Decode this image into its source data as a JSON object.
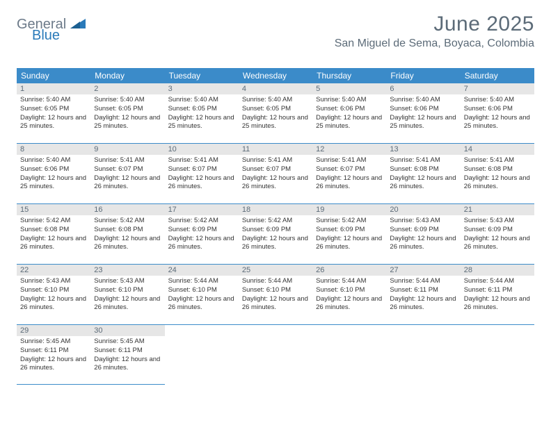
{
  "brand": {
    "part1": "General",
    "part2": "Blue"
  },
  "title": "June 2025",
  "location": "San Miguel de Sema, Boyaca, Colombia",
  "colors": {
    "header_bg": "#3b8bc9",
    "daynum_bg": "#e6e6e6",
    "text_muted": "#5c6b78",
    "brand_blue": "#2a7ab9",
    "brand_gray": "#6c7a89"
  },
  "weekdays": [
    "Sunday",
    "Monday",
    "Tuesday",
    "Wednesday",
    "Thursday",
    "Friday",
    "Saturday"
  ],
  "weeks": [
    [
      {
        "n": "1",
        "sr": "Sunrise: 5:40 AM",
        "ss": "Sunset: 6:05 PM",
        "dl": "Daylight: 12 hours and 25 minutes."
      },
      {
        "n": "2",
        "sr": "Sunrise: 5:40 AM",
        "ss": "Sunset: 6:05 PM",
        "dl": "Daylight: 12 hours and 25 minutes."
      },
      {
        "n": "3",
        "sr": "Sunrise: 5:40 AM",
        "ss": "Sunset: 6:05 PM",
        "dl": "Daylight: 12 hours and 25 minutes."
      },
      {
        "n": "4",
        "sr": "Sunrise: 5:40 AM",
        "ss": "Sunset: 6:05 PM",
        "dl": "Daylight: 12 hours and 25 minutes."
      },
      {
        "n": "5",
        "sr": "Sunrise: 5:40 AM",
        "ss": "Sunset: 6:06 PM",
        "dl": "Daylight: 12 hours and 25 minutes."
      },
      {
        "n": "6",
        "sr": "Sunrise: 5:40 AM",
        "ss": "Sunset: 6:06 PM",
        "dl": "Daylight: 12 hours and 25 minutes."
      },
      {
        "n": "7",
        "sr": "Sunrise: 5:40 AM",
        "ss": "Sunset: 6:06 PM",
        "dl": "Daylight: 12 hours and 25 minutes."
      }
    ],
    [
      {
        "n": "8",
        "sr": "Sunrise: 5:40 AM",
        "ss": "Sunset: 6:06 PM",
        "dl": "Daylight: 12 hours and 25 minutes."
      },
      {
        "n": "9",
        "sr": "Sunrise: 5:41 AM",
        "ss": "Sunset: 6:07 PM",
        "dl": "Daylight: 12 hours and 26 minutes."
      },
      {
        "n": "10",
        "sr": "Sunrise: 5:41 AM",
        "ss": "Sunset: 6:07 PM",
        "dl": "Daylight: 12 hours and 26 minutes."
      },
      {
        "n": "11",
        "sr": "Sunrise: 5:41 AM",
        "ss": "Sunset: 6:07 PM",
        "dl": "Daylight: 12 hours and 26 minutes."
      },
      {
        "n": "12",
        "sr": "Sunrise: 5:41 AM",
        "ss": "Sunset: 6:07 PM",
        "dl": "Daylight: 12 hours and 26 minutes."
      },
      {
        "n": "13",
        "sr": "Sunrise: 5:41 AM",
        "ss": "Sunset: 6:08 PM",
        "dl": "Daylight: 12 hours and 26 minutes."
      },
      {
        "n": "14",
        "sr": "Sunrise: 5:41 AM",
        "ss": "Sunset: 6:08 PM",
        "dl": "Daylight: 12 hours and 26 minutes."
      }
    ],
    [
      {
        "n": "15",
        "sr": "Sunrise: 5:42 AM",
        "ss": "Sunset: 6:08 PM",
        "dl": "Daylight: 12 hours and 26 minutes."
      },
      {
        "n": "16",
        "sr": "Sunrise: 5:42 AM",
        "ss": "Sunset: 6:08 PM",
        "dl": "Daylight: 12 hours and 26 minutes."
      },
      {
        "n": "17",
        "sr": "Sunrise: 5:42 AM",
        "ss": "Sunset: 6:09 PM",
        "dl": "Daylight: 12 hours and 26 minutes."
      },
      {
        "n": "18",
        "sr": "Sunrise: 5:42 AM",
        "ss": "Sunset: 6:09 PM",
        "dl": "Daylight: 12 hours and 26 minutes."
      },
      {
        "n": "19",
        "sr": "Sunrise: 5:42 AM",
        "ss": "Sunset: 6:09 PM",
        "dl": "Daylight: 12 hours and 26 minutes."
      },
      {
        "n": "20",
        "sr": "Sunrise: 5:43 AM",
        "ss": "Sunset: 6:09 PM",
        "dl": "Daylight: 12 hours and 26 minutes."
      },
      {
        "n": "21",
        "sr": "Sunrise: 5:43 AM",
        "ss": "Sunset: 6:09 PM",
        "dl": "Daylight: 12 hours and 26 minutes."
      }
    ],
    [
      {
        "n": "22",
        "sr": "Sunrise: 5:43 AM",
        "ss": "Sunset: 6:10 PM",
        "dl": "Daylight: 12 hours and 26 minutes."
      },
      {
        "n": "23",
        "sr": "Sunrise: 5:43 AM",
        "ss": "Sunset: 6:10 PM",
        "dl": "Daylight: 12 hours and 26 minutes."
      },
      {
        "n": "24",
        "sr": "Sunrise: 5:44 AM",
        "ss": "Sunset: 6:10 PM",
        "dl": "Daylight: 12 hours and 26 minutes."
      },
      {
        "n": "25",
        "sr": "Sunrise: 5:44 AM",
        "ss": "Sunset: 6:10 PM",
        "dl": "Daylight: 12 hours and 26 minutes."
      },
      {
        "n": "26",
        "sr": "Sunrise: 5:44 AM",
        "ss": "Sunset: 6:10 PM",
        "dl": "Daylight: 12 hours and 26 minutes."
      },
      {
        "n": "27",
        "sr": "Sunrise: 5:44 AM",
        "ss": "Sunset: 6:11 PM",
        "dl": "Daylight: 12 hours and 26 minutes."
      },
      {
        "n": "28",
        "sr": "Sunrise: 5:44 AM",
        "ss": "Sunset: 6:11 PM",
        "dl": "Daylight: 12 hours and 26 minutes."
      }
    ],
    [
      {
        "n": "29",
        "sr": "Sunrise: 5:45 AM",
        "ss": "Sunset: 6:11 PM",
        "dl": "Daylight: 12 hours and 26 minutes."
      },
      {
        "n": "30",
        "sr": "Sunrise: 5:45 AM",
        "ss": "Sunset: 6:11 PM",
        "dl": "Daylight: 12 hours and 26 minutes."
      },
      null,
      null,
      null,
      null,
      null
    ]
  ]
}
